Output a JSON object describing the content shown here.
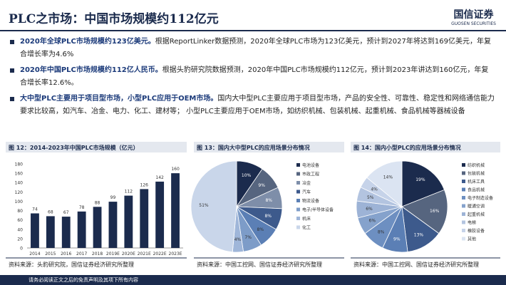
{
  "header": {
    "title": "PLC之市场：中国市场规模约112亿元",
    "logo": {
      "name": "国信证券",
      "subtitle": "GUOSEN SECURITIES"
    }
  },
  "bullets": [
    {
      "bold": "2020年全球PLC市场规模约123亿美元。",
      "text": "根据ReportLinker数据预测，2020年全球PLC市场为123亿美元，预计到2027年将达到169亿美元，年复合增长率为4.6%"
    },
    {
      "bold": "2020年中国PLC市场规模约112亿人民币。",
      "text": "根据头豹研究院数据预测，2020年中国PLC市场规模约112亿元，预计到2023年讲达到160亿元，年复合增长率12.6%。"
    },
    {
      "bold": "大中型PLC主要用于项目型市场，小型PLC应用于OEM市场。",
      "text": "国内大中型PLC主要应用于项目型市场，产品的安全性、可靠性、稳定性和网络通信能力要求比较高，如汽车、冶金、电力、化工、建材等；  小型PLC主要应用于OEM市场，如纺织机械、包装机械、起重机械、食品机械等器械设备"
    }
  ],
  "chart_data": [
    {
      "type": "bar",
      "title": "图 12：2014-2023年中国PLC市场规模（亿元）",
      "categories": [
        "2014",
        "2015",
        "2016",
        "2017",
        "2018",
        "2019E",
        "2020E",
        "2021E",
        "2022E",
        "2023E"
      ],
      "values": [
        74,
        68,
        67,
        78,
        88,
        99,
        112,
        126,
        142,
        160
      ],
      "color": "#1b2b4d",
      "ylim": [
        0,
        180
      ],
      "yticks": [
        0,
        20,
        40,
        60,
        80,
        100,
        120,
        140,
        160,
        180
      ],
      "source": "资料来源：头豹研究院，国信证券经济研究所整理"
    },
    {
      "type": "pie",
      "title": "图 13：国内大中型PLC的应用场景分布情况",
      "categories": [
        "电池设备",
        "市政工程",
        "冶金",
        "汽车",
        "物流设备",
        "电子/半导体设备",
        "机床",
        "化工"
      ],
      "values": [
        10,
        9,
        8,
        8,
        8,
        7,
        4,
        51
      ],
      "value_labels": [
        "10%",
        "9%",
        "8%",
        "8%",
        "8%",
        "7%",
        "4%",
        "51%"
      ],
      "colors": [
        "#1b2b4d",
        "#56657f",
        "#7e8ea9",
        "#3d5a8c",
        "#5b7fb5",
        "#7d9cc8",
        "#9fb6d9",
        "#c9d6ea"
      ],
      "source": "资料来源：中国工控网、国信证券经济研究所整理"
    },
    {
      "type": "pie",
      "title": "图 14：国内小型PLC的应用场景分布情况",
      "categories": [
        "纺织机械",
        "包装机械",
        "机床工具",
        "食品机械",
        "电子制造设备",
        "暖通空调",
        "起重机械",
        "电梯",
        "橡胶设备",
        "其他"
      ],
      "values": [
        19,
        16,
        13,
        9,
        8,
        6,
        6,
        5,
        4,
        14
      ],
      "value_labels": [
        "19%",
        "16%",
        "13%",
        "9%",
        "8%",
        "6%",
        "6%",
        "5%",
        "4%",
        "14%"
      ],
      "colors": [
        "#1b2b4d",
        "#56657f",
        "#3d5a8c",
        "#5b7fb5",
        "#6d8fc1",
        "#85a2cc",
        "#9db3d6",
        "#b3c4e0",
        "#c6d3e9",
        "#dbe4f2"
      ],
      "source": "资料来源：中国工控网、国信证券经济研究所整理"
    }
  ],
  "footer": "请务必阅读正文之后的免责声明及其项下所有内容"
}
